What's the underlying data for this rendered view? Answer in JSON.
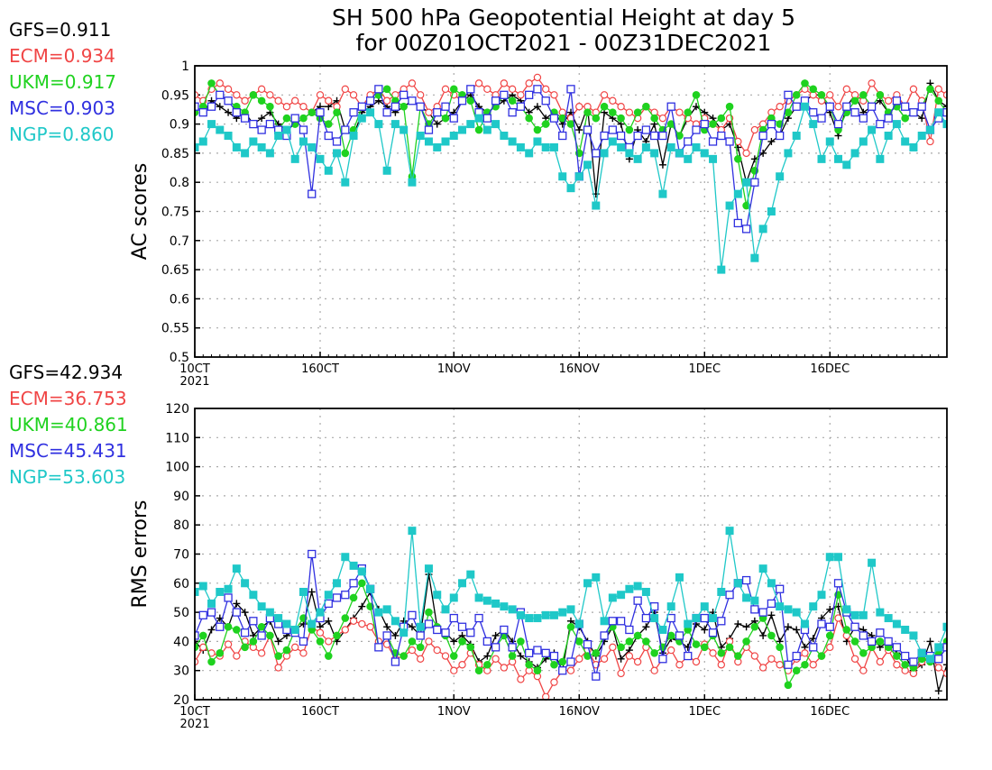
{
  "title_line1": "SH 500 hPa Geopotential Height at day 5",
  "title_line2": "for 00Z01OCT2021 - 00Z31DEC2021",
  "colors": {
    "GFS": "#000000",
    "ECM": "#f04545",
    "UKM": "#1fd21f",
    "MSC": "#3030e0",
    "NGP": "#1fc8c8"
  },
  "chart_data": [
    {
      "type": "line",
      "ylabel": "AC scores",
      "ylim": [
        0.5,
        1.0
      ],
      "yticks": [
        "0.5",
        "0.55",
        "0.6",
        "0.65",
        "0.7",
        "0.75",
        "0.8",
        "0.85",
        "0.9",
        "0.95",
        "1"
      ],
      "xtick_labels": [
        "10CT",
        "160CT",
        "1NOV",
        "16NOV",
        "1DEC",
        "16DEC"
      ],
      "xtick_days": [
        0,
        15,
        31,
        46,
        61,
        76
      ],
      "x_first_sublabel": "2021",
      "x_domain": [
        0,
        90
      ],
      "grid": true,
      "legend": [
        {
          "model": "GFS",
          "text": "GFS=0.911"
        },
        {
          "model": "ECM",
          "text": "ECM=0.934"
        },
        {
          "model": "UKM",
          "text": "UKM=0.917"
        },
        {
          "model": "MSC",
          "text": "MSC=0.903"
        },
        {
          "model": "NGP",
          "text": "NGP=0.860"
        }
      ],
      "series": [
        {
          "name": "GFS",
          "marker": "plus",
          "values": [
            0.93,
            0.92,
            0.94,
            0.93,
            0.92,
            0.91,
            0.92,
            0.9,
            0.91,
            0.92,
            0.9,
            0.89,
            0.9,
            0.91,
            0.92,
            0.93,
            0.93,
            0.94,
            0.89,
            0.88,
            0.92,
            0.93,
            0.94,
            0.93,
            0.92,
            0.93,
            0.94,
            0.93,
            0.92,
            0.9,
            0.91,
            0.92,
            0.94,
            0.95,
            0.93,
            0.92,
            0.93,
            0.94,
            0.95,
            0.94,
            0.92,
            0.93,
            0.91,
            0.92,
            0.9,
            0.92,
            0.89,
            0.93,
            0.78,
            0.92,
            0.91,
            0.9,
            0.84,
            0.89,
            0.87,
            0.9,
            0.83,
            0.9,
            0.88,
            0.91,
            0.93,
            0.92,
            0.91,
            0.89,
            0.9,
            0.86,
            0.8,
            0.84,
            0.85,
            0.87,
            0.88,
            0.91,
            0.93,
            0.94,
            0.95,
            0.95,
            0.92,
            0.88,
            0.93,
            0.95,
            0.92,
            0.93,
            0.94,
            0.92,
            0.93,
            0.91,
            0.92,
            0.91,
            0.97,
            0.94,
            0.93
          ]
        },
        {
          "name": "ECM",
          "marker": "circle",
          "values": [
            0.95,
            0.94,
            0.96,
            0.97,
            0.96,
            0.95,
            0.94,
            0.95,
            0.96,
            0.95,
            0.94,
            0.93,
            0.94,
            0.93,
            0.92,
            0.95,
            0.94,
            0.93,
            0.96,
            0.95,
            0.93,
            0.95,
            0.96,
            0.94,
            0.95,
            0.96,
            0.97,
            0.95,
            0.92,
            0.93,
            0.96,
            0.95,
            0.94,
            0.96,
            0.97,
            0.96,
            0.95,
            0.97,
            0.96,
            0.95,
            0.97,
            0.98,
            0.96,
            0.95,
            0.92,
            0.91,
            0.93,
            0.93,
            0.92,
            0.95,
            0.94,
            0.93,
            0.92,
            0.91,
            0.93,
            0.92,
            0.91,
            0.93,
            0.92,
            0.91,
            0.9,
            0.91,
            0.9,
            0.89,
            0.91,
            0.87,
            0.85,
            0.89,
            0.9,
            0.92,
            0.93,
            0.94,
            0.95,
            0.96,
            0.95,
            0.94,
            0.95,
            0.93,
            0.96,
            0.95,
            0.94,
            0.97,
            0.95,
            0.94,
            0.95,
            0.93,
            0.96,
            0.94,
            0.87,
            0.96,
            0.95
          ]
        },
        {
          "name": "UKM",
          "marker": "dot",
          "values": [
            0.92,
            0.93,
            0.97,
            0.95,
            0.94,
            0.93,
            0.92,
            0.95,
            0.94,
            0.93,
            0.89,
            0.91,
            0.9,
            0.91,
            0.92,
            0.91,
            0.9,
            0.92,
            0.85,
            0.89,
            0.93,
            0.94,
            0.95,
            0.96,
            0.94,
            0.93,
            0.81,
            0.93,
            0.9,
            0.92,
            0.91,
            0.96,
            0.95,
            0.94,
            0.89,
            0.92,
            0.93,
            0.95,
            0.94,
            0.93,
            0.91,
            0.89,
            0.9,
            0.92,
            0.91,
            0.9,
            0.85,
            0.92,
            0.91,
            0.93,
            0.92,
            0.91,
            0.89,
            0.92,
            0.93,
            0.91,
            0.89,
            0.9,
            0.88,
            0.92,
            0.95,
            0.89,
            0.9,
            0.91,
            0.93,
            0.84,
            0.76,
            0.82,
            0.89,
            0.91,
            0.9,
            0.92,
            0.95,
            0.97,
            0.96,
            0.95,
            0.93,
            0.89,
            0.92,
            0.94,
            0.95,
            0.93,
            0.95,
            0.92,
            0.93,
            0.91,
            0.92,
            0.93,
            0.96,
            0.94,
            0.92
          ]
        },
        {
          "name": "MSC",
          "marker": "square",
          "values": [
            0.93,
            0.92,
            0.93,
            0.95,
            0.94,
            0.92,
            0.91,
            0.9,
            0.89,
            0.9,
            0.89,
            0.88,
            0.91,
            0.89,
            0.78,
            0.92,
            0.88,
            0.87,
            0.89,
            0.92,
            0.93,
            0.94,
            0.96,
            0.92,
            0.93,
            0.95,
            0.94,
            0.93,
            0.89,
            0.92,
            0.93,
            0.91,
            0.94,
            0.96,
            0.92,
            0.91,
            0.94,
            0.95,
            0.92,
            0.93,
            0.95,
            0.96,
            0.94,
            0.91,
            0.88,
            0.96,
            0.81,
            0.89,
            0.85,
            0.88,
            0.89,
            0.88,
            0.86,
            0.88,
            0.89,
            0.88,
            0.88,
            0.93,
            0.85,
            0.87,
            0.89,
            0.9,
            0.87,
            0.88,
            0.87,
            0.73,
            0.72,
            0.8,
            0.88,
            0.9,
            0.88,
            0.95,
            0.93,
            0.94,
            0.92,
            0.91,
            0.93,
            0.9,
            0.93,
            0.92,
            0.91,
            0.93,
            0.9,
            0.91,
            0.94,
            0.93,
            0.92,
            0.93,
            0.89,
            0.91,
            0.92
          ]
        },
        {
          "name": "NGP",
          "marker": "filledsquare",
          "values": [
            0.86,
            0.87,
            0.9,
            0.89,
            0.88,
            0.86,
            0.85,
            0.87,
            0.86,
            0.85,
            0.88,
            0.89,
            0.84,
            0.87,
            0.86,
            0.84,
            0.82,
            0.85,
            0.8,
            0.88,
            0.91,
            0.92,
            0.9,
            0.82,
            0.9,
            0.89,
            0.8,
            0.88,
            0.87,
            0.86,
            0.87,
            0.88,
            0.89,
            0.9,
            0.91,
            0.89,
            0.9,
            0.88,
            0.87,
            0.86,
            0.85,
            0.87,
            0.86,
            0.86,
            0.81,
            0.79,
            0.81,
            0.83,
            0.76,
            0.85,
            0.87,
            0.86,
            0.85,
            0.84,
            0.86,
            0.85,
            0.78,
            0.86,
            0.85,
            0.84,
            0.86,
            0.85,
            0.84,
            0.65,
            0.76,
            0.78,
            0.8,
            0.67,
            0.72,
            0.75,
            0.81,
            0.85,
            0.88,
            0.93,
            0.9,
            0.84,
            0.87,
            0.84,
            0.83,
            0.85,
            0.87,
            0.89,
            0.84,
            0.88,
            0.9,
            0.87,
            0.86,
            0.88,
            0.89,
            0.92,
            0.9
          ]
        }
      ]
    },
    {
      "type": "line",
      "ylabel": "RMS errors",
      "ylim": [
        20,
        120
      ],
      "yticks": [
        "20",
        "30",
        "40",
        "50",
        "60",
        "70",
        "80",
        "90",
        "100",
        "110",
        "120"
      ],
      "xtick_labels": [
        "10CT",
        "160CT",
        "1NOV",
        "16NOV",
        "1DEC",
        "16DEC"
      ],
      "xtick_days": [
        0,
        15,
        31,
        46,
        61,
        76
      ],
      "x_first_sublabel": "2021",
      "x_domain": [
        0,
        90
      ],
      "grid": true,
      "legend": [
        {
          "model": "GFS",
          "text": "GFS=42.934"
        },
        {
          "model": "ECM",
          "text": "ECM=36.753"
        },
        {
          "model": "UKM",
          "text": "UKM=40.861"
        },
        {
          "model": "MSC",
          "text": "MSC=45.431"
        },
        {
          "model": "NGP",
          "text": "NGP=53.603"
        }
      ],
      "series": [
        {
          "name": "GFS",
          "marker": "plus",
          "values": [
            40,
            37,
            44,
            48,
            45,
            53,
            50,
            42,
            45,
            47,
            40,
            42,
            44,
            46,
            57,
            45,
            47,
            40,
            44,
            48,
            52,
            57,
            51,
            45,
            42,
            47,
            45,
            42,
            63,
            45,
            43,
            40,
            42,
            39,
            33,
            35,
            42,
            44,
            40,
            35,
            33,
            31,
            34,
            36,
            30,
            47,
            45,
            40,
            35,
            40,
            45,
            34,
            37,
            42,
            45,
            50,
            36,
            41,
            40,
            38,
            46,
            44,
            50,
            38,
            41,
            46,
            45,
            47,
            42,
            49,
            40,
            45,
            44,
            38,
            41,
            48,
            51,
            52,
            40,
            45,
            44,
            42,
            38,
            40,
            36,
            35,
            30,
            32,
            40,
            23,
            32
          ]
        },
        {
          "name": "ECM",
          "marker": "circle",
          "values": [
            33,
            38,
            36,
            35,
            39,
            35,
            40,
            38,
            36,
            42,
            31,
            35,
            38,
            36,
            45,
            43,
            40,
            42,
            44,
            47,
            46,
            45,
            40,
            39,
            34,
            35,
            37,
            34,
            40,
            37,
            35,
            30,
            32,
            36,
            32,
            30,
            34,
            31,
            33,
            27,
            30,
            28,
            21,
            26,
            30,
            30,
            34,
            37,
            32,
            34,
            38,
            29,
            35,
            33,
            38,
            30,
            34,
            37,
            32,
            35,
            33,
            39,
            36,
            32,
            40,
            33,
            38,
            35,
            31,
            34,
            32,
            30,
            34,
            36,
            32,
            35,
            38,
            48,
            42,
            34,
            30,
            38,
            33,
            37,
            32,
            30,
            29,
            33,
            35,
            31,
            29
          ]
        },
        {
          "name": "UKM",
          "marker": "dot",
          "values": [
            38,
            42,
            33,
            36,
            45,
            44,
            38,
            40,
            45,
            42,
            35,
            37,
            44,
            48,
            44,
            40,
            35,
            42,
            48,
            55,
            60,
            52,
            38,
            42,
            36,
            35,
            40,
            38,
            50,
            45,
            42,
            35,
            40,
            38,
            30,
            32,
            38,
            42,
            35,
            40,
            32,
            30,
            36,
            32,
            33,
            45,
            40,
            35,
            36,
            42,
            45,
            38,
            40,
            42,
            40,
            36,
            38,
            42,
            40,
            44,
            39,
            38,
            42,
            36,
            38,
            35,
            40,
            45,
            48,
            42,
            38,
            25,
            30,
            32,
            38,
            35,
            42,
            56,
            44,
            40,
            36,
            38,
            40,
            38,
            35,
            32,
            31,
            34,
            33,
            36,
            40
          ]
        },
        {
          "name": "MSC",
          "marker": "square",
          "values": [
            42,
            49,
            50,
            45,
            55,
            50,
            43,
            47,
            42,
            48,
            46,
            44,
            43,
            40,
            70,
            48,
            53,
            55,
            56,
            60,
            65,
            58,
            38,
            42,
            33,
            45,
            49,
            42,
            46,
            44,
            43,
            48,
            45,
            43,
            48,
            40,
            38,
            44,
            38,
            50,
            36,
            37,
            36,
            35,
            30,
            33,
            46,
            39,
            28,
            42,
            47,
            47,
            44,
            54,
            48,
            52,
            34,
            48,
            42,
            35,
            48,
            48,
            43,
            47,
            56,
            60,
            61,
            51,
            50,
            53,
            58,
            32,
            35,
            44,
            38,
            46,
            45,
            60,
            50,
            45,
            42,
            40,
            43,
            40,
            38,
            35,
            33,
            36,
            35,
            34,
            38
          ]
        },
        {
          "name": "NGP",
          "marker": "filledsquare",
          "values": [
            57,
            59,
            53,
            57,
            58,
            65,
            60,
            56,
            52,
            50,
            48,
            46,
            44,
            57,
            46,
            50,
            56,
            60,
            69,
            66,
            64,
            58,
            50,
            51,
            47,
            43,
            78,
            45,
            65,
            56,
            51,
            55,
            60,
            63,
            55,
            54,
            53,
            52,
            51,
            49,
            48,
            48,
            49,
            49,
            50,
            51,
            46,
            60,
            62,
            47,
            55,
            56,
            58,
            59,
            57,
            48,
            44,
            52,
            62,
            46,
            48,
            52,
            48,
            57,
            78,
            60,
            55,
            54,
            65,
            60,
            52,
            51,
            50,
            46,
            52,
            56,
            69,
            69,
            51,
            49,
            49,
            67,
            50,
            48,
            46,
            44,
            42,
            36,
            34,
            38,
            45
          ]
        }
      ]
    }
  ]
}
